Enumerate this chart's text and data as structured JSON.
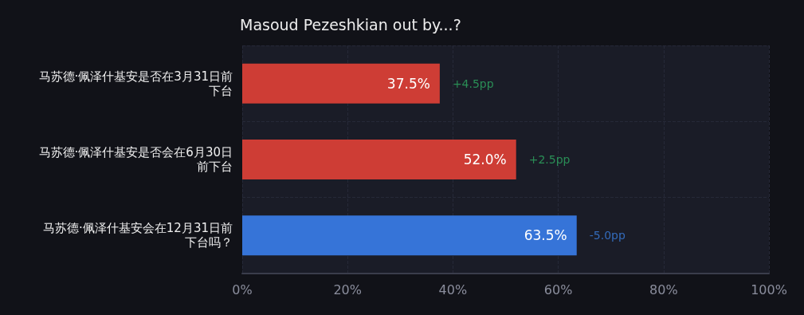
{
  "chart_data": {
    "type": "bar",
    "orientation": "horizontal",
    "title": "Masoud Pezeshkian out by...?",
    "categories": [
      "马苏德·佩泽什基安是否在3月31日前下台",
      "马苏德·佩泽什基安是否会在6月30日前下台",
      "马苏德·佩泽什基安会在12月31日前下台吗？"
    ],
    "values": [
      37.5,
      52.0,
      63.5
    ],
    "colors": [
      "#ce3d35",
      "#ce3d35",
      "#3674d8"
    ],
    "value_labels": [
      "37.5%",
      "52.0%",
      "63.5%"
    ],
    "annotations": [
      {
        "text": "+4.5pp",
        "x": 37.5,
        "y": "马苏德·佩泽什基安是否在3月31日前下台"
      },
      {
        "text": "+2.5pp",
        "x": 52.0,
        "y": "马苏德·佩泽什基安是否会在6月30日前下台"
      },
      {
        "text": "-5.0pp",
        "x": 63.5,
        "y": "马苏德·佩泽什基安会在12月31日前下台吗？"
      }
    ],
    "xlim": [
      0,
      100
    ],
    "xticks": [
      {
        "value": 0,
        "label": "0%"
      },
      {
        "value": 20,
        "label": "20%"
      },
      {
        "value": 40,
        "label": "40%"
      },
      {
        "value": 60,
        "label": "60%"
      },
      {
        "value": 80,
        "label": "80%"
      },
      {
        "value": 100,
        "label": "100%"
      }
    ],
    "grid": true
  }
}
